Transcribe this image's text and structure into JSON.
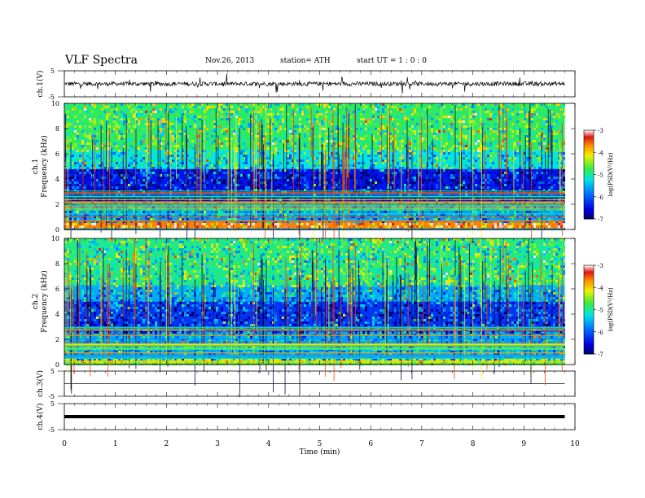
{
  "header": {
    "title": "VLF  Spectra",
    "date": "Nov.26, 2013",
    "station": "station= ATH",
    "start": "start  UT  =   1  : 0  : 0"
  },
  "chart_data": [
    {
      "type": "line",
      "panel": "ch1-waveform",
      "ylabel": "ch.1(V)",
      "yticks": [
        "5",
        "-5"
      ],
      "ylim": [
        -5,
        5
      ],
      "baseline": 0,
      "color": "#000000"
    },
    {
      "type": "heatmap",
      "panel": "ch1-spectrogram",
      "ylabel": "ch.1\nFrequency  (kHz)",
      "ylabel_lines": [
        "ch.1",
        "Frequency  (kHz)"
      ],
      "yticks": [
        "0",
        "2",
        "4",
        "6",
        "8",
        "10"
      ],
      "ylim": [
        0,
        10
      ],
      "colorbar": {
        "label": "log(PSD(V²/Hz)",
        "ticks": [
          "-3",
          "-4",
          "-5",
          "-6",
          "-7"
        ],
        "range": [
          -7,
          -3
        ]
      },
      "bands_khz": [
        {
          "from": 0,
          "to": 0.6,
          "level": -3.6
        },
        {
          "from": 0.6,
          "to": 2.2,
          "level": -5.6
        },
        {
          "from": 2.2,
          "to": 4.8,
          "level": -6.4
        },
        {
          "from": 4.8,
          "to": 6.3,
          "level": -5.2
        },
        {
          "from": 6.3,
          "to": 10,
          "level": -4.8
        }
      ]
    },
    {
      "type": "heatmap",
      "panel": "ch2-spectrogram",
      "ylabel": "ch.2\nFrequency  (kHz)",
      "ylabel_lines": [
        "ch.2",
        "Frequency  (kHz)"
      ],
      "yticks": [
        "0",
        "2",
        "4",
        "6",
        "8",
        "10"
      ],
      "ylim": [
        0,
        10
      ],
      "colorbar": {
        "label": "log(PSD(V²/Hz)",
        "ticks": [
          "-3",
          "-4",
          "-5",
          "-6",
          "-7"
        ],
        "range": [
          -7,
          -3
        ]
      },
      "bands_khz": [
        {
          "from": 0,
          "to": 0.5,
          "level": -4.2
        },
        {
          "from": 0.5,
          "to": 2.6,
          "level": -5.5
        },
        {
          "from": 2.6,
          "to": 5.0,
          "level": -6.2
        },
        {
          "from": 5.0,
          "to": 6.3,
          "level": -5.5
        },
        {
          "from": 6.3,
          "to": 10,
          "level": -4.9
        }
      ]
    },
    {
      "type": "line",
      "panel": "ch3-waveform",
      "ylabel": "ch.3(V)",
      "yticks": [
        "5",
        "-5"
      ],
      "ylim": [
        -5,
        5
      ],
      "baseline": 0,
      "color": "#000000"
    },
    {
      "type": "line",
      "panel": "ch4-waveform",
      "ylabel": "ch.4(V)",
      "yticks": [
        "5",
        "-5"
      ],
      "ylim": [
        -5,
        5
      ],
      "baseline": 0,
      "color": "#000000"
    }
  ],
  "xaxis": {
    "label": "Time  (min)",
    "ticks": [
      "0",
      "1",
      "2",
      "3",
      "4",
      "5",
      "6",
      "7",
      "8",
      "9",
      "10"
    ],
    "xlim": [
      0,
      10
    ],
    "data_end": 9.8
  }
}
